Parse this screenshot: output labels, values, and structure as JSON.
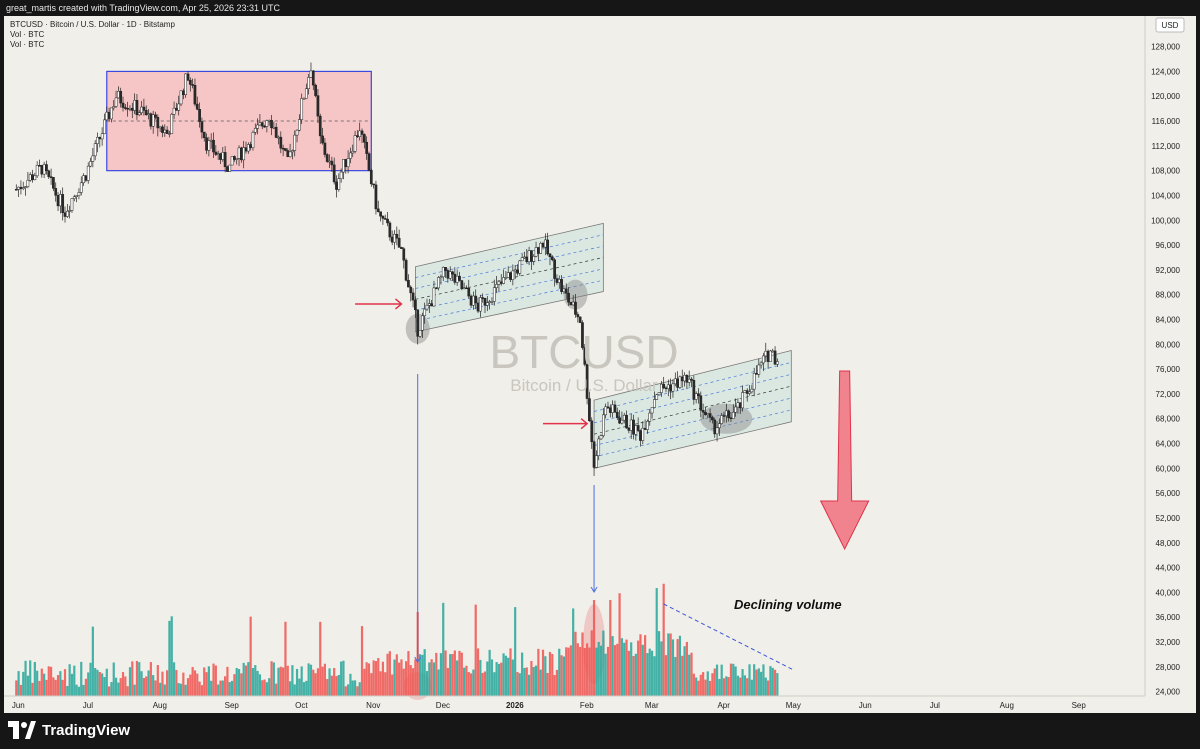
{
  "header": {
    "credit": "great_martis created with TradingView.com, Apr 25, 2026 23:31 UTC"
  },
  "legend": {
    "line1": "BTCUSD · Bitcoin / U.S. Dollar · 1D · Bitstamp",
    "line2": "Vol · BTC",
    "line3": "Vol · BTC"
  },
  "watermark": {
    "symbol": "BTCUSD",
    "name": "Bitcoin / U.S. Dollar"
  },
  "currency_badge": "USD",
  "annotation": "Declining volume",
  "footer": {
    "brand": "TradingView"
  },
  "colors": {
    "up": "#26a69a",
    "down": "#ef5350",
    "background": "#f1efe9",
    "box_fill": "#f5b8b8",
    "box_border": "#3b48e0",
    "channel_fill": "#d3e6df",
    "arrow": "#f0707e"
  },
  "chart_data": {
    "type": "candlestick",
    "symbol": "BTCUSD",
    "interval": "1D",
    "x_ticks": [
      "Jun",
      "Jul",
      "Aug",
      "Sep",
      "Oct",
      "Nov",
      "Dec",
      "2026",
      "Feb",
      "Mar",
      "Apr",
      "May",
      "Jun",
      "Jul",
      "Aug",
      "Sep"
    ],
    "y_ticks": [
      24000,
      28000,
      32000,
      36000,
      40000,
      44000,
      48000,
      52000,
      56000,
      60000,
      64000,
      68000,
      72000,
      76000,
      80000,
      84000,
      88000,
      92000,
      96000,
      100000,
      104000,
      108000,
      112000,
      116000,
      120000,
      124000,
      128000
    ],
    "ylim": [
      22000,
      131000
    ],
    "price_path": [
      {
        "date": "2025-06-01",
        "price": 105000
      },
      {
        "date": "2025-06-12",
        "price": 108500
      },
      {
        "date": "2025-06-22",
        "price": 101500
      },
      {
        "date": "2025-07-01",
        "price": 107500
      },
      {
        "date": "2025-07-14",
        "price": 120000
      },
      {
        "date": "2025-07-25",
        "price": 117500
      },
      {
        "date": "2025-08-05",
        "price": 114000
      },
      {
        "date": "2025-08-14",
        "price": 123500
      },
      {
        "date": "2025-08-22",
        "price": 112500
      },
      {
        "date": "2025-09-01",
        "price": 108500
      },
      {
        "date": "2025-09-18",
        "price": 117000
      },
      {
        "date": "2025-09-26",
        "price": 109000
      },
      {
        "date": "2025-10-06",
        "price": 125000
      },
      {
        "date": "2025-10-10",
        "price": 113000
      },
      {
        "date": "2025-10-17",
        "price": 106000
      },
      {
        "date": "2025-10-27",
        "price": 115000
      },
      {
        "date": "2025-11-04",
        "price": 101000
      },
      {
        "date": "2025-11-14",
        "price": 95000
      },
      {
        "date": "2025-11-21",
        "price": 82500
      },
      {
        "date": "2025-12-03",
        "price": 92000
      },
      {
        "date": "2025-12-17",
        "price": 86000
      },
      {
        "date": "2026-01-05",
        "price": 93000
      },
      {
        "date": "2026-01-14",
        "price": 96500
      },
      {
        "date": "2026-01-22",
        "price": 89000
      },
      {
        "date": "2026-01-30",
        "price": 84000
      },
      {
        "date": "2026-02-05",
        "price": 60500
      },
      {
        "date": "2026-02-10",
        "price": 70000
      },
      {
        "date": "2026-02-25",
        "price": 65500
      },
      {
        "date": "2026-03-04",
        "price": 72500
      },
      {
        "date": "2026-03-17",
        "price": 74500
      },
      {
        "date": "2026-03-28",
        "price": 66500
      },
      {
        "date": "2026-04-08",
        "price": 69500
      },
      {
        "date": "2026-04-17",
        "price": 76000
      },
      {
        "date": "2026-04-22",
        "price": 79000
      },
      {
        "date": "2026-04-25",
        "price": 77500
      }
    ],
    "volume_spikes": [
      {
        "date": "2025-11-21"
      },
      {
        "date": "2026-02-05"
      }
    ],
    "shapes": {
      "range_box": {
        "start": "2025-07-10",
        "end": "2025-11-01",
        "top": 124000,
        "bottom": 108000,
        "mid": 116000
      },
      "channel_1": {
        "start": "2025-11-20",
        "end": "2026-02-09",
        "start_low": 82000,
        "start_high": 92500,
        "end_low": 88500,
        "end_high": 99500
      },
      "channel_2": {
        "start": "2026-02-05",
        "end": "2026-05-01",
        "start_low": 60000,
        "start_high": 71000,
        "end_low": 67500,
        "end_high": 79000
      },
      "volume_trendline": {
        "start": "2026-03-07",
        "end": "2026-05-02"
      }
    }
  }
}
